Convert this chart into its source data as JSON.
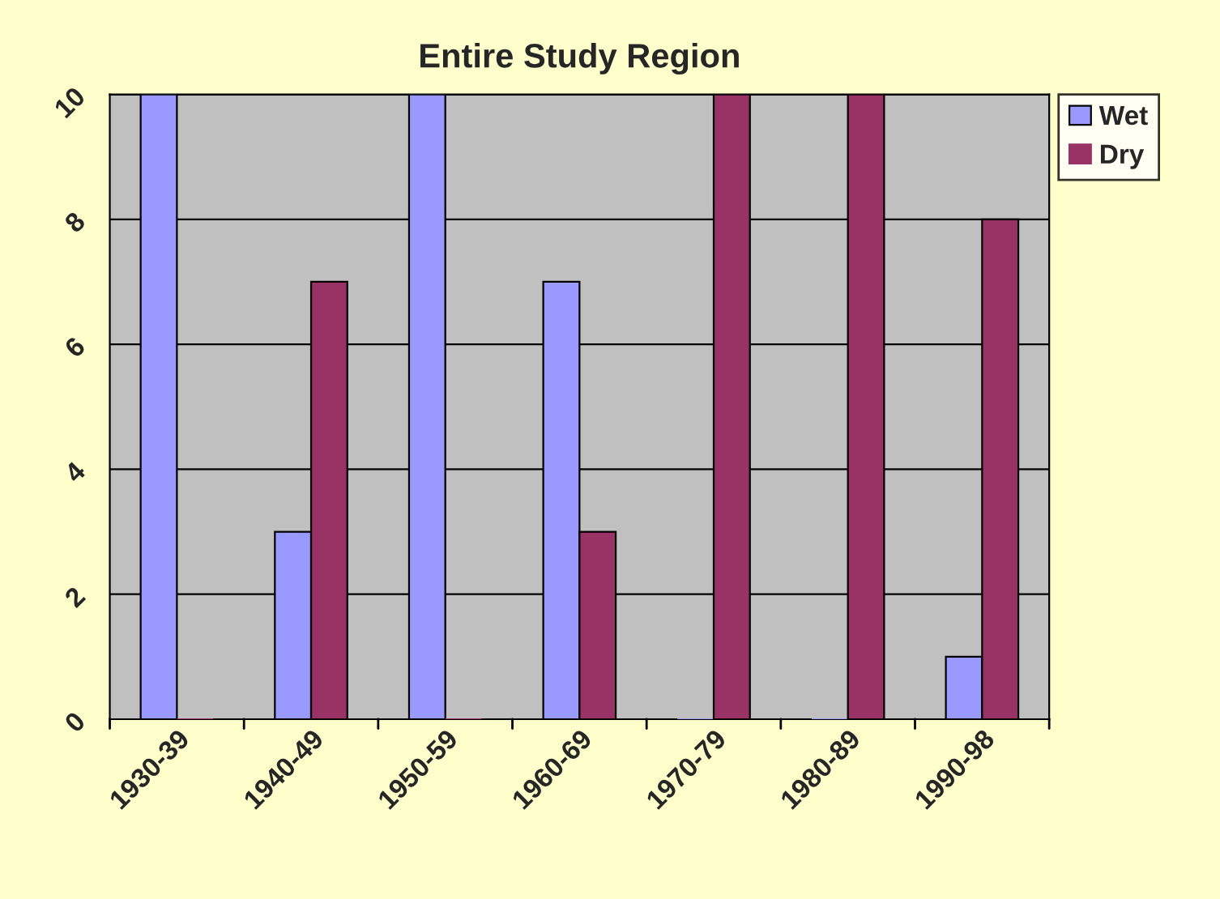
{
  "chart_data": {
    "type": "bar",
    "title": "Entire Study Region",
    "categories": [
      "1930-39",
      "1940-49",
      "1950-59",
      "1960-69",
      "1970-79",
      "1980-89",
      "1990-98"
    ],
    "series": [
      {
        "name": "Wet",
        "color": "#9999ff",
        "values": [
          10,
          3,
          10,
          7,
          0,
          0,
          1
        ]
      },
      {
        "name": "Dry",
        "color": "#993366",
        "values": [
          0,
          7,
          0,
          3,
          10,
          10,
          8
        ]
      }
    ],
    "ylim": [
      0,
      10
    ],
    "yticks": [
      0,
      2,
      4,
      6,
      8,
      10
    ],
    "grid": "y",
    "legend": "top right"
  }
}
